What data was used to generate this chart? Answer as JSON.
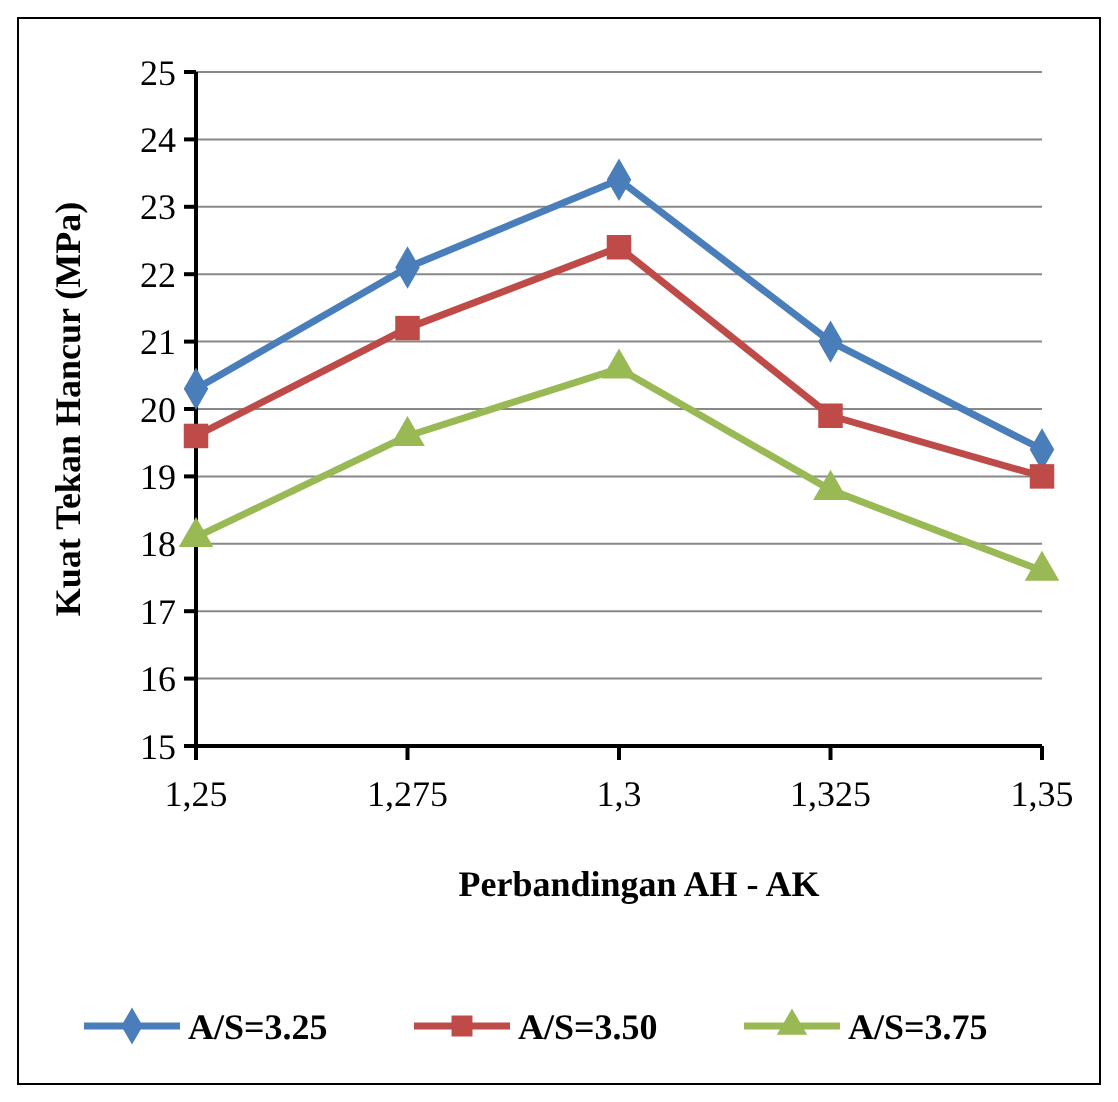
{
  "chart_data": {
    "type": "line",
    "xlabel": "Perbandingan AH - AK",
    "ylabel": "Kuat Tekan Hancur (MPa)",
    "categories": [
      "1,25",
      "1,275",
      "1,3",
      "1,325",
      "1,35"
    ],
    "series": [
      {
        "name": "A/S=3.25",
        "color": "#4a7ebb",
        "marker": "diamond",
        "values": [
          20.3,
          22.1,
          23.4,
          21.0,
          19.4
        ]
      },
      {
        "name": "A/S=3.50",
        "color": "#be4b48",
        "marker": "square",
        "values": [
          19.6,
          21.2,
          22.4,
          19.9,
          19.0
        ]
      },
      {
        "name": "A/S=3.75",
        "color": "#98b954",
        "marker": "triangle",
        "values": [
          18.1,
          19.6,
          20.6,
          18.8,
          17.6
        ]
      }
    ],
    "ylim": [
      15,
      25
    ],
    "yticks": [
      15,
      16,
      17,
      18,
      19,
      20,
      21,
      22,
      23,
      24,
      25
    ],
    "grid": "y",
    "legend": "bottom",
    "line_style": "solid"
  }
}
